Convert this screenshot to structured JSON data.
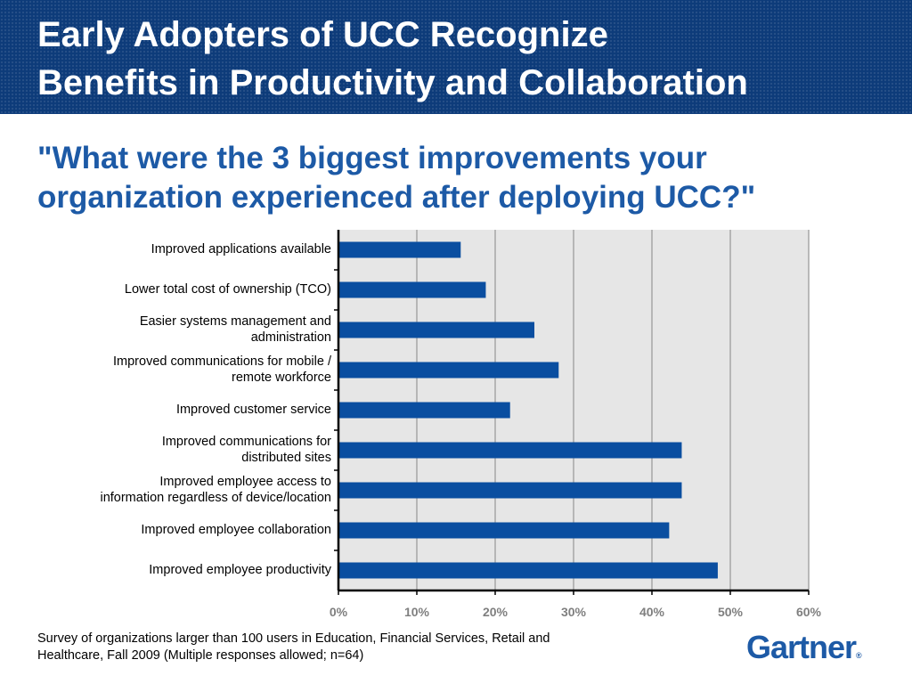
{
  "slide": {
    "title_line1": "Early Adopters of UCC Recognize",
    "title_line2": "Benefits in Productivity and Collaboration",
    "question_line1": "\"What were the 3 biggest improvements your",
    "question_line2": "organization experienced after deploying UCC?\"",
    "footnote_line1": "Survey of organizations larger than 100 users in Education, Financial Services, Retail and",
    "footnote_line2": "Healthcare, Fall 2009 (Multiple responses allowed; n=64)",
    "logo_text": "Gartner",
    "logo_mark": "®"
  },
  "colors": {
    "header_bg": "#0d3b7a",
    "question_text": "#1d5aa6",
    "bar": "#0a4ea0",
    "plot_bg": "#e6e6e6",
    "tick_label": "#7f7f7f"
  },
  "chart_data": {
    "type": "bar",
    "orientation": "horizontal",
    "categories": [
      [
        "Improved applications available"
      ],
      [
        "Lower total cost of ownership (TCO)"
      ],
      [
        "Easier systems management and",
        "administration"
      ],
      [
        "Improved communications for mobile /",
        "remote workforce"
      ],
      [
        "Improved customer service"
      ],
      [
        "Improved communications for",
        "distributed sites"
      ],
      [
        "Improved employee access to",
        "information regardless of device/location"
      ],
      [
        "Improved employee collaboration"
      ],
      [
        "Improved employee productivity"
      ]
    ],
    "values": [
      15.6,
      18.8,
      25.0,
      28.1,
      21.9,
      43.8,
      43.8,
      42.2,
      48.4
    ],
    "xlim": [
      0,
      60
    ],
    "xticks": [
      "0%",
      "10%",
      "20%",
      "30%",
      "40%",
      "50%",
      "60%"
    ],
    "grid": "vertical",
    "legend": "none"
  }
}
